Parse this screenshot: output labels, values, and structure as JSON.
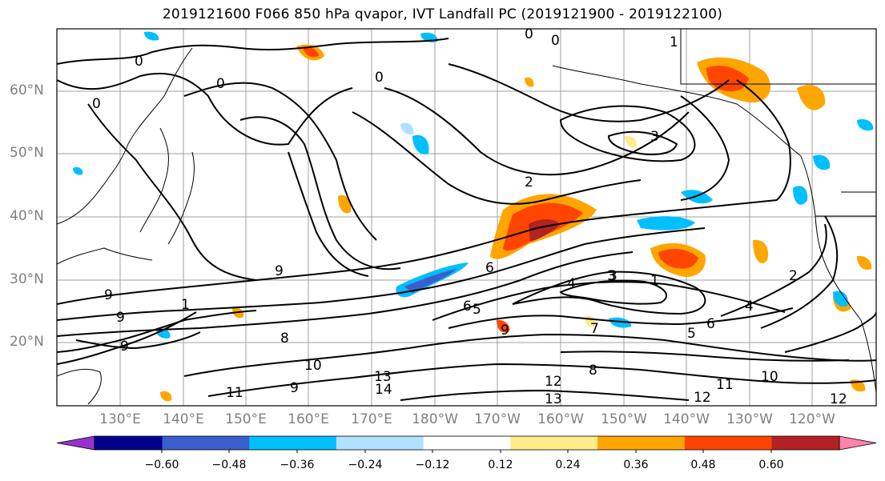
{
  "title": "2019121600 F066 850 hPa qvapor, IVT Landfall PC (2019121900 - 2019122100)",
  "lat_labels": [
    "60°N",
    "50°N",
    "40°N",
    "30°N",
    "20°N"
  ],
  "lon_labels": [
    "130°E",
    "140°E",
    "150°E",
    "160°E",
    "170°E",
    "180°W",
    "170°W",
    "160°W",
    "150°W",
    "140°W",
    "130°W",
    "120°W"
  ],
  "colorbar": {
    "colors": [
      "#9932cc",
      "#00008b",
      "#3a5fcd",
      "#00bfff",
      "#b0e2ff",
      "#ffffff",
      "#ffec8b",
      "#ffa500",
      "#ff4500",
      "#b22222",
      "#ff82ab"
    ],
    "tick_labels": [
      "−0.60",
      "−0.48",
      "−0.36",
      "−0.24",
      "−0.12",
      "0.12",
      "0.24",
      "0.36",
      "0.48",
      "0.60"
    ]
  },
  "contour_labels": [
    "0",
    "0",
    "0",
    "0",
    "0",
    "0",
    "1",
    "3",
    "3",
    "2",
    "6",
    "5",
    "4",
    "3",
    "1",
    "5",
    "6",
    "7",
    "8",
    "9",
    "9",
    "9",
    "9",
    "8",
    "10",
    "10",
    "11",
    "11",
    "12",
    "12",
    "12",
    "13",
    "13",
    "14",
    "9",
    "1",
    "9",
    "6",
    "4",
    "2"
  ]
}
